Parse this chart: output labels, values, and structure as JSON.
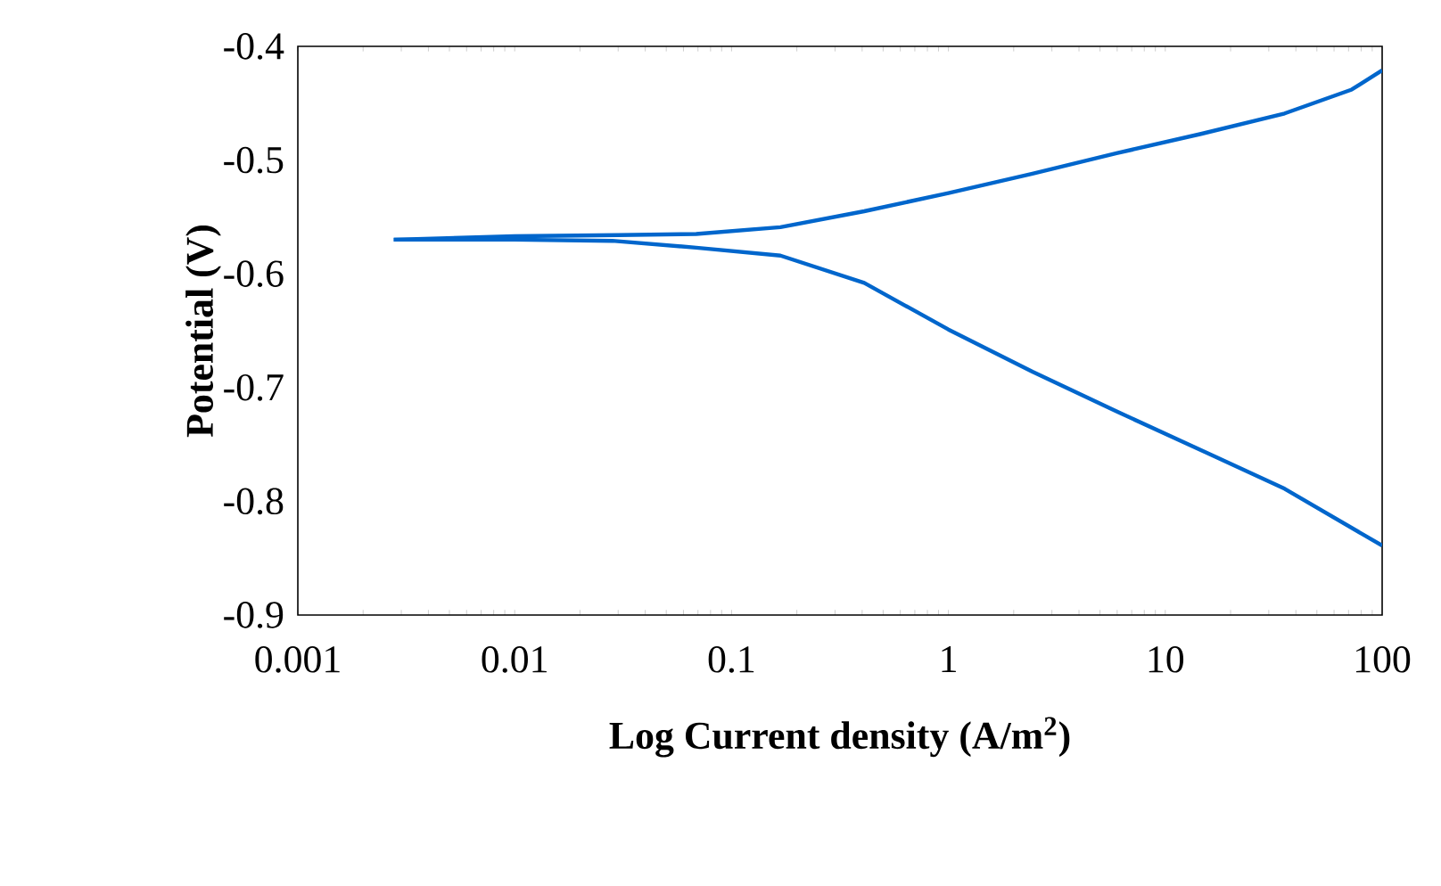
{
  "chart_data": {
    "type": "line",
    "xlabel": "Log Current density (A/m$^{2}$)",
    "ylabel": "Potential (V)",
    "log": "x",
    "xlim": [
      0.001,
      100
    ],
    "xticks": [
      0.001,
      0.01,
      0.1,
      1,
      10,
      100
    ],
    "ylim": [
      -0.9,
      -0.4
    ],
    "yticks": [
      -0.9,
      -0.8,
      -0.7,
      -0.6,
      -0.5,
      -0.4
    ],
    "series": [
      {
        "color": "#0066cc",
        "x": [
          0.00277,
          0.01,
          0.03,
          0.0687,
          0.168,
          0.409,
          1,
          2.44,
          5.96,
          14.6,
          35.5,
          72.4,
          100
        ],
        "values": [
          -0.57,
          -0.567,
          -0.566,
          -0.565,
          -0.559,
          -0.545,
          -0.529,
          -0.512,
          -0.494,
          -0.477,
          -0.459,
          -0.438,
          -0.421
        ]
      },
      {
        "color": "#0066cc",
        "x": [
          0.00277,
          0.01,
          0.0282,
          0.0687,
          0.168,
          0.409,
          1,
          2.44,
          5.96,
          14.6,
          35.5,
          100
        ],
        "values": [
          -0.57,
          -0.57,
          -0.571,
          -0.577,
          -0.584,
          -0.608,
          -0.649,
          -0.686,
          -0.721,
          -0.755,
          -0.789,
          -0.839
        ]
      }
    ]
  }
}
